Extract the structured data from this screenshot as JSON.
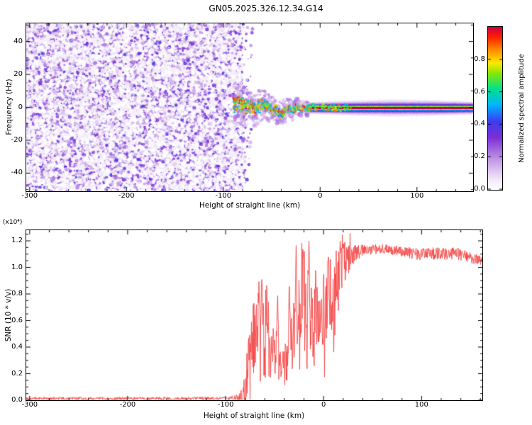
{
  "title": "GN05.2025.326.12.34.G14",
  "colormap": {
    "stops": [
      [
        0.0,
        "#ffffff"
      ],
      [
        0.06,
        "#f2eaf9"
      ],
      [
        0.18,
        "#c49ae6"
      ],
      [
        0.32,
        "#7b2fd4"
      ],
      [
        0.42,
        "#3c3cf0"
      ],
      [
        0.52,
        "#00b4ff"
      ],
      [
        0.62,
        "#00e08c"
      ],
      [
        0.72,
        "#8ce800"
      ],
      [
        0.78,
        "#ffe800"
      ],
      [
        0.86,
        "#ff8c00"
      ],
      [
        0.94,
        "#ff2000"
      ],
      [
        1.0,
        "#c80040"
      ]
    ]
  },
  "top_chart": {
    "ylabel": "Frequency (Hz)",
    "xlabel": "Height of straight line (km)",
    "x_tick_labels": [
      "-300",
      "-200",
      "-100",
      "0",
      "100"
    ],
    "x_tick_values": [
      -300,
      -200,
      -100,
      0,
      100
    ],
    "y_tick_labels": [
      "40",
      "20",
      "0",
      "-20",
      "-40"
    ],
    "y_tick_values": [
      40,
      20,
      0,
      -20,
      -40
    ],
    "colorbar_label": "Normalized spectral amplitude",
    "colorbar_tick_labels": [
      "0.0",
      "0.2",
      "0.4",
      "0.6",
      "0.8"
    ],
    "colorbar_tick_values": [
      0.0,
      0.2,
      0.4,
      0.6,
      0.8
    ]
  },
  "bottom_chart": {
    "ylabel": "SNR (10 * v/v)",
    "y_scale_label": "(x10⁴)",
    "xlabel": "Height of straight line (km)",
    "x_tick_labels": [
      "-300",
      "-200",
      "-100",
      "0",
      "100"
    ],
    "x_tick_values": [
      -300,
      -200,
      -100,
      0,
      100
    ],
    "y_tick_labels": [
      "0.0",
      "0.2",
      "0.4",
      "0.6",
      "0.8",
      "1.0",
      "1.2"
    ],
    "y_tick_values": [
      0.0,
      0.2,
      0.4,
      0.6,
      0.8,
      1.0,
      1.2
    ]
  },
  "chart_data": [
    {
      "type": "heatmap",
      "title": "GN05.2025.326.12.34.G14",
      "xlabel": "Height of straight line (km)",
      "ylabel": "Frequency (Hz)",
      "xlim": [
        -303.5,
        158
      ],
      "ylim": [
        -51,
        51
      ],
      "colorbar": {
        "label": "Normalized spectral amplitude",
        "range": [
          0,
          1
        ],
        "ticks": [
          0,
          0.2,
          0.4,
          0.6,
          0.8
        ],
        "position": "right"
      },
      "features": {
        "noise_region": {
          "x_range": [
            -303.5,
            -80
          ],
          "freq_range": [
            -51,
            51
          ],
          "amplitude_range": [
            0.05,
            0.35
          ],
          "description": "uniform speckled low-amplitude purple noise filling all frequencies"
        },
        "chaotic_signal": {
          "x_range": [
            -89,
            -12
          ],
          "center_freq_range": [
            -5,
            6
          ],
          "freq_halfwidth_start": 8,
          "freq_halfwidth_end": 2.5,
          "amplitude_range": [
            0.35,
            1.0
          ],
          "description": "strong scattered multicolour signal wandering about 0 Hz after noise cutoff"
        },
        "stable_signal": {
          "x_range": [
            -12,
            158
          ],
          "center_freq": 0,
          "core_amplitude": 1.0,
          "core_halfwidth_hz": 0.6,
          "green_halfwidth_hz": 2.3,
          "halo_halfwidth_keypoints": [
            [
              -12,
              3.5
            ],
            [
              0,
              4.5
            ],
            [
              30,
              6.5
            ],
            [
              70,
              8
            ],
            [
              110,
              7.5
            ],
            [
              140,
              6.2
            ],
            [
              158,
              5
            ]
          ],
          "description": "narrow horizontal line at 0 Hz: red core, green band, purple halo bulging mid-range"
        }
      }
    },
    {
      "type": "line",
      "xlabel": "Height of straight line (km)",
      "ylabel": "SNR (10 * v/v)",
      "y_scale": "x10^4",
      "xlim": [
        -303.5,
        162
      ],
      "ylim": [
        0,
        1.28
      ],
      "x_ticks": [
        -300,
        -200,
        -100,
        0,
        100
      ],
      "y_ticks": [
        0,
        0.2,
        0.4,
        0.6,
        0.8,
        1.0,
        1.2
      ],
      "grid": false,
      "legend": "none",
      "series": [
        {
          "name": "SNR",
          "color": "#f54545",
          "base_keypoints": [
            [
              -303.5,
              0.012
            ],
            [
              -150,
              0.012
            ],
            [
              -95,
              0.015
            ],
            [
              -88,
              0.02
            ],
            [
              -84,
              0.04
            ],
            [
              -80,
              0.1
            ],
            [
              -77,
              0.25
            ],
            [
              -74,
              0.35
            ],
            [
              -71,
              0.45
            ],
            [
              -68,
              0.55
            ],
            [
              -65,
              0.6
            ],
            [
              -62,
              0.5
            ],
            [
              -59,
              0.4
            ],
            [
              -56,
              0.35
            ],
            [
              -52,
              0.4
            ],
            [
              -48,
              0.35
            ],
            [
              -44,
              0.3
            ],
            [
              -40,
              0.32
            ],
            [
              -36,
              0.35
            ],
            [
              -32,
              0.45
            ],
            [
              -28,
              0.55
            ],
            [
              -24,
              0.6
            ],
            [
              -20,
              0.65
            ],
            [
              -16,
              0.6
            ],
            [
              -12,
              0.5
            ],
            [
              -8,
              0.55
            ],
            [
              -4,
              0.6
            ],
            [
              0,
              0.7
            ],
            [
              4,
              0.75
            ],
            [
              8,
              0.8
            ],
            [
              12,
              0.85
            ],
            [
              16,
              0.9
            ],
            [
              20,
              1.0
            ],
            [
              25,
              1.05
            ],
            [
              30,
              1.1
            ],
            [
              40,
              1.13
            ],
            [
              60,
              1.14
            ],
            [
              80,
              1.12
            ],
            [
              100,
              1.1
            ],
            [
              120,
              1.11
            ],
            [
              140,
              1.1
            ],
            [
              150,
              1.07
            ],
            [
              162,
              1.05
            ]
          ],
          "noise_amplitude_keypoints": [
            [
              -303.5,
              0.012
            ],
            [
              -100,
              0.012
            ],
            [
              -90,
              0.02
            ],
            [
              -84,
              0.06
            ],
            [
              -78,
              0.18
            ],
            [
              -72,
              0.28
            ],
            [
              -66,
              0.32
            ],
            [
              -60,
              0.28
            ],
            [
              -54,
              0.22
            ],
            [
              -48,
              0.18
            ],
            [
              -42,
              0.16
            ],
            [
              -36,
              0.2
            ],
            [
              -30,
              0.3
            ],
            [
              -24,
              0.38
            ],
            [
              -18,
              0.42
            ],
            [
              -12,
              0.35
            ],
            [
              -6,
              0.28
            ],
            [
              0,
              0.3
            ],
            [
              6,
              0.32
            ],
            [
              12,
              0.3
            ],
            [
              18,
              0.25
            ],
            [
              24,
              0.15
            ],
            [
              30,
              0.08
            ],
            [
              40,
              0.04
            ],
            [
              60,
              0.035
            ],
            [
              90,
              0.045
            ],
            [
              120,
              0.05
            ],
            [
              145,
              0.045
            ],
            [
              162,
              0.035
            ]
          ],
          "spikes": [
            [
              -63,
              1.0
            ],
            [
              -58,
              0.9
            ],
            [
              -47,
              0.85
            ],
            [
              -35,
              0.9
            ],
            [
              -28,
              1.18
            ],
            [
              -21,
              1.26
            ],
            [
              -15,
              1.2
            ],
            [
              -8,
              1.0
            ],
            [
              5,
              1.1
            ],
            [
              17,
              1.26
            ],
            [
              20,
              1.2
            ]
          ]
        }
      ]
    }
  ]
}
